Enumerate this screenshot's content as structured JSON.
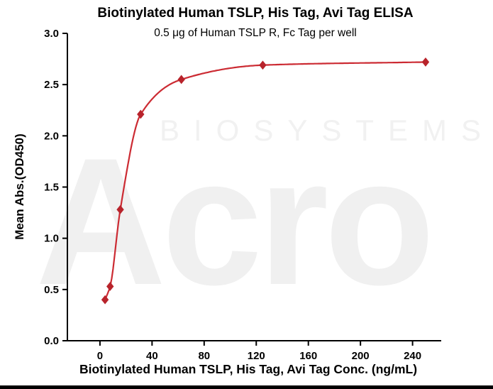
{
  "watermark": {
    "brand": "Acro",
    "sub": "BIOSYSTEMS"
  },
  "chart_data": {
    "type": "scatter",
    "title": "Biotinylated Human TSLP, His Tag, Avi Tag ELISA",
    "subtitle": "0.5 μg of Human TSLP R, Fc Tag per well",
    "xlabel": "Biotinylated Human TSLP, His Tag, Avi Tag Conc. (ng/mL)",
    "ylabel": "Mean Abs.(OD450)",
    "x": [
      3.9,
      7.8,
      15.6,
      31.25,
      62.5,
      125,
      250
    ],
    "y": [
      0.4,
      0.53,
      1.28,
      2.21,
      2.55,
      2.69,
      2.72
    ],
    "series_name": "Mean Abs.(OD450)",
    "fit": "4PL sigmoidal fit through points",
    "marker": "diamond",
    "line_color": "#cc2b33",
    "marker_color": "#b8232b",
    "axis_color": "#000000",
    "xlim": [
      -25,
      262
    ],
    "ylim": [
      0,
      3
    ],
    "xticks": [
      0,
      40,
      80,
      120,
      160,
      200,
      240
    ],
    "yticks": [
      0.0,
      0.5,
      1.0,
      1.5,
      2.0,
      2.5,
      3.0
    ],
    "grid": false,
    "legend": false
  }
}
